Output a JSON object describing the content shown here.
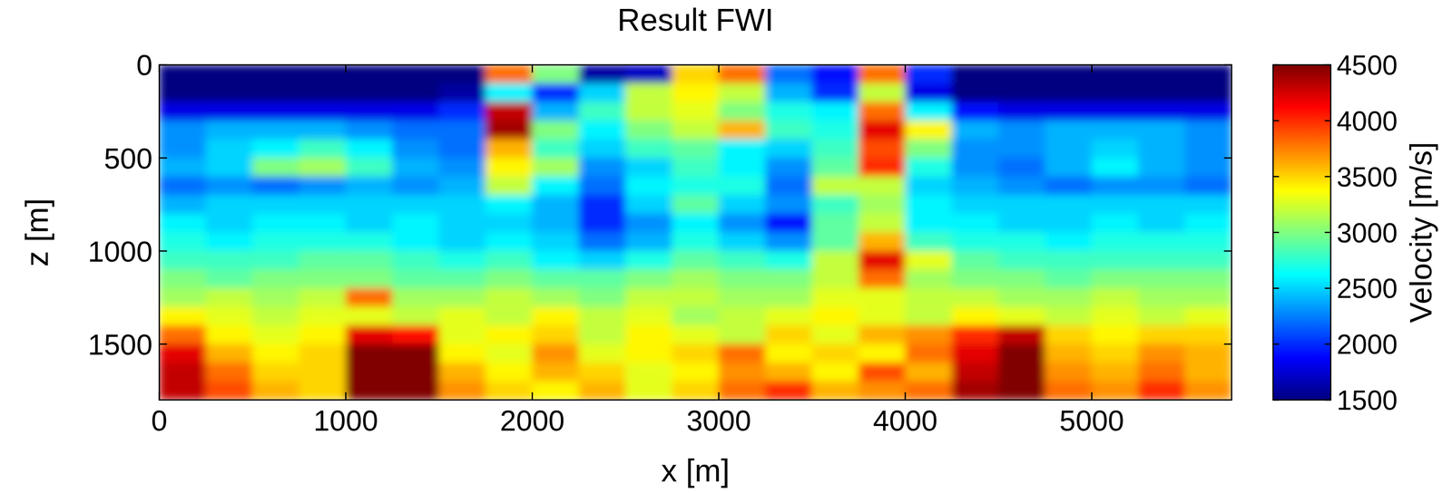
{
  "chart_data": {
    "type": "heatmap",
    "title": "Result FWI",
    "x_label": "x [m]",
    "y_label": "z [m]",
    "x": [
      125,
      375,
      625,
      875,
      1125,
      1375,
      1625,
      1875,
      2125,
      2375,
      2625,
      2875,
      3125,
      3375,
      3625,
      3875,
      4125,
      4375,
      4625,
      4875,
      5125,
      5375,
      5625
    ],
    "y": [
      50,
      150,
      250,
      350,
      450,
      550,
      650,
      750,
      850,
      950,
      1050,
      1150,
      1250,
      1350,
      1450,
      1550,
      1650,
      1750
    ],
    "values": [
      [
        1500,
        1500,
        1500,
        1500,
        1500,
        1500,
        1500,
        3800,
        3000,
        1600,
        1700,
        3500,
        3800,
        2200,
        1900,
        3800,
        2000,
        1500,
        1500,
        1500,
        1500,
        1500,
        1500
      ],
      [
        1500,
        1500,
        1500,
        1500,
        1500,
        1500,
        1600,
        2600,
        2000,
        2500,
        3200,
        3400,
        3200,
        2400,
        2000,
        3200,
        1800,
        1500,
        1500,
        1500,
        1500,
        1500,
        1500
      ],
      [
        1800,
        1800,
        1800,
        1800,
        1800,
        1800,
        2000,
        4300,
        2400,
        2800,
        3200,
        3300,
        3000,
        2700,
        2600,
        3800,
        2600,
        1900,
        1800,
        1800,
        1800,
        1800,
        1800
      ],
      [
        2300,
        2400,
        2400,
        2400,
        2300,
        2200,
        2200,
        4400,
        3000,
        2600,
        3000,
        3200,
        3600,
        2800,
        2700,
        4200,
        3400,
        2400,
        2300,
        2400,
        2400,
        2400,
        2300
      ],
      [
        2300,
        2500,
        2600,
        2800,
        2600,
        2300,
        2200,
        3600,
        2800,
        2500,
        2800,
        2900,
        2600,
        2500,
        2800,
        3900,
        3000,
        2300,
        2300,
        2400,
        2500,
        2400,
        2300
      ],
      [
        2400,
        2500,
        3000,
        3100,
        2800,
        2400,
        2300,
        3400,
        3100,
        2300,
        2500,
        2800,
        2600,
        2300,
        2900,
        4000,
        2700,
        2300,
        2200,
        2400,
        2600,
        2400,
        2300
      ],
      [
        2200,
        2300,
        2200,
        2300,
        2400,
        2300,
        2400,
        3200,
        2600,
        2200,
        2600,
        2700,
        2700,
        2200,
        3200,
        3200,
        2500,
        2400,
        2300,
        2200,
        2300,
        2300,
        2200
      ],
      [
        2400,
        2500,
        2500,
        2500,
        2500,
        2500,
        2500,
        2600,
        2400,
        2000,
        2500,
        2900,
        2500,
        2300,
        2800,
        3100,
        2600,
        2500,
        2500,
        2500,
        2500,
        2500,
        2500
      ],
      [
        2600,
        2500,
        2600,
        2600,
        2500,
        2600,
        2500,
        2500,
        2400,
        2000,
        2300,
        2600,
        2300,
        1900,
        2900,
        3200,
        2600,
        2600,
        2500,
        2500,
        2600,
        2500,
        2600
      ],
      [
        2700,
        2600,
        2700,
        2700,
        2700,
        2600,
        2500,
        2600,
        2500,
        2200,
        2400,
        2700,
        2500,
        2300,
        2900,
        3600,
        2800,
        2700,
        2700,
        2600,
        2700,
        2700,
        2700
      ],
      [
        2800,
        2800,
        2800,
        2900,
        2900,
        2800,
        2700,
        2800,
        2600,
        2500,
        2700,
        2900,
        2800,
        2700,
        3200,
        4200,
        3300,
        2900,
        2800,
        2800,
        2800,
        2800,
        2800
      ],
      [
        3000,
        2900,
        3000,
        3000,
        3000,
        2900,
        2900,
        3000,
        2900,
        2900,
        3000,
        3100,
        3000,
        3000,
        3200,
        3800,
        3100,
        3000,
        3000,
        2900,
        3000,
        3000,
        3000
      ],
      [
        3100,
        3200,
        3100,
        3200,
        3800,
        3100,
        3100,
        3200,
        3100,
        3000,
        3200,
        3200,
        3100,
        3100,
        3300,
        3300,
        3200,
        3200,
        3100,
        3100,
        3200,
        3100,
        3100
      ],
      [
        3400,
        3300,
        3200,
        3300,
        3300,
        3200,
        3300,
        3200,
        3400,
        3200,
        3300,
        3100,
        3200,
        3300,
        3400,
        3300,
        3200,
        3400,
        3300,
        3200,
        3300,
        3200,
        3300
      ],
      [
        3800,
        3400,
        3300,
        3400,
        4200,
        4100,
        3300,
        3400,
        3500,
        3200,
        3400,
        3300,
        3200,
        3500,
        3300,
        3600,
        3700,
        4000,
        4300,
        3500,
        3400,
        3500,
        3500
      ],
      [
        4200,
        3600,
        3400,
        3500,
        4500,
        4500,
        3400,
        3300,
        3700,
        3300,
        3400,
        3500,
        3800,
        3400,
        3500,
        3400,
        3800,
        4200,
        4500,
        3600,
        3500,
        3700,
        3600
      ],
      [
        4300,
        3800,
        3500,
        3500,
        4500,
        4500,
        3600,
        3400,
        3600,
        3500,
        3300,
        3400,
        3700,
        3600,
        3400,
        3900,
        3600,
        4300,
        4500,
        3700,
        3600,
        3800,
        3600
      ],
      [
        4300,
        3900,
        3600,
        3500,
        4500,
        4500,
        3700,
        3500,
        3400,
        3600,
        3300,
        3500,
        3800,
        4000,
        3600,
        3700,
        3800,
        4400,
        4500,
        3800,
        3700,
        4000,
        3700
      ]
    ],
    "xlim": [
      0,
      5750
    ],
    "ylim": [
      0,
      1800
    ],
    "xticks": [
      0,
      1000,
      2000,
      3000,
      4000,
      5000
    ],
    "yticks": [
      0,
      500,
      1000,
      1500
    ],
    "colorbar_label": "Velocity [m/s]",
    "color_range": [
      1500,
      4500
    ],
    "color_ticks": [
      1500,
      2000,
      2500,
      3000,
      3500,
      4000,
      4500
    ]
  }
}
